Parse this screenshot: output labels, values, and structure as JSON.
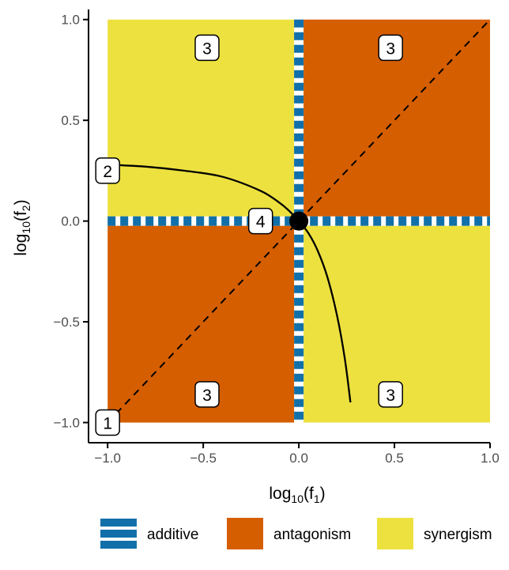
{
  "chart_data": {
    "type": "heatmap",
    "title": "",
    "xlabel": {
      "base": "log",
      "sub": "10",
      "open": "(f",
      "var_sub": "1",
      "close": ")"
    },
    "ylabel": {
      "base": "log",
      "sub": "10",
      "open": "(f",
      "var_sub": "2",
      "close": ")"
    },
    "xlim": [
      -1.1,
      1.0
    ],
    "ylim": [
      -1.1,
      1.05
    ],
    "x_ticks": [
      -1.0,
      -0.5,
      0.0,
      0.5,
      1.0
    ],
    "x_tick_labels": [
      "−1.0",
      "−0.5",
      "0.0",
      "0.5",
      "1.0"
    ],
    "y_ticks": [
      -1.0,
      -0.5,
      0.0,
      0.5,
      1.0
    ],
    "y_tick_labels": [
      "−1.0",
      "−0.5",
      "0.0",
      "0.5",
      "1.0"
    ],
    "grid": false,
    "regions": [
      {
        "class": "synergism",
        "x": [
          -1.0,
          0.0
        ],
        "y": [
          0.0,
          1.0
        ]
      },
      {
        "class": "antagonism",
        "x": [
          0.0,
          1.0
        ],
        "y": [
          0.0,
          1.0
        ]
      },
      {
        "class": "antagonism",
        "x": [
          -1.0,
          0.0
        ],
        "y": [
          -1.0,
          0.0
        ]
      },
      {
        "class": "synergism",
        "x": [
          0.0,
          1.0
        ],
        "y": [
          -1.0,
          0.0
        ]
      }
    ],
    "additive_lines": [
      {
        "orientation": "vertical",
        "x": 0.0,
        "range": [
          -1.0,
          1.0
        ]
      },
      {
        "orientation": "horizontal",
        "y": 0.0,
        "range": [
          -1.0,
          1.0
        ]
      }
    ],
    "diagonal": {
      "from": [
        -1.0,
        -1.0
      ],
      "to": [
        1.0,
        1.0
      ],
      "style": "dashed"
    },
    "curve": {
      "x": [
        -1.0,
        -0.8,
        -0.6,
        -0.4,
        -0.2,
        -0.1,
        -0.05,
        0.0,
        0.05,
        0.1,
        0.15,
        0.2,
        0.24,
        0.27
      ],
      "y": [
        0.28,
        0.27,
        0.25,
        0.22,
        0.15,
        0.09,
        0.05,
        0.0,
        -0.06,
        -0.15,
        -0.28,
        -0.47,
        -0.68,
        -0.9
      ]
    },
    "point": {
      "x": 0.0,
      "y": 0.0
    },
    "badges": [
      {
        "label": "3",
        "x": -0.48,
        "y": 0.86
      },
      {
        "label": "3",
        "x": 0.48,
        "y": 0.86
      },
      {
        "label": "3",
        "x": -0.48,
        "y": -0.86
      },
      {
        "label": "3",
        "x": 0.48,
        "y": -0.86
      },
      {
        "label": "2",
        "x": -1.0,
        "y": 0.25
      },
      {
        "label": "4",
        "x": -0.2,
        "y": 0.0
      },
      {
        "label": "1",
        "x": -1.0,
        "y": -1.0
      }
    ],
    "legend": {
      "position": "bottom",
      "entries": [
        {
          "label": "additive",
          "kind": "lines"
        },
        {
          "label": "antagonism",
          "kind": "fill"
        },
        {
          "label": "synergism",
          "kind": "fill"
        }
      ]
    }
  },
  "colors": {
    "synergism": "#ede13f",
    "antagonism": "#d55e00",
    "additive": "#1170aa",
    "additive_gap": "#ffffff",
    "axis": "#000000",
    "tick_text": "#4d4d4d"
  }
}
